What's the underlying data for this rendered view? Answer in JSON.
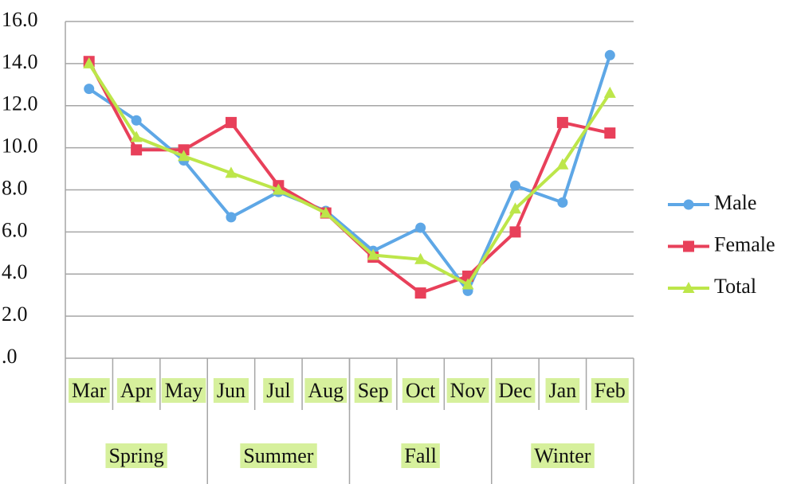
{
  "chart_data": {
    "type": "line",
    "categories": [
      "Mar",
      "Apr",
      "May",
      "Jun",
      "Jul",
      "Aug",
      "Sep",
      "Oct",
      "Nov",
      "Dec",
      "Jan",
      "Feb"
    ],
    "groups": [
      "Spring",
      "Summer",
      "Fall",
      "Winter"
    ],
    "series": [
      {
        "name": "Male",
        "color": "#5ea7e6",
        "marker": "circle",
        "values": [
          12.8,
          11.3,
          9.4,
          6.7,
          7.9,
          7.0,
          5.1,
          6.2,
          3.2,
          8.2,
          7.4,
          14.4
        ]
      },
      {
        "name": "Female",
        "color": "#e8405a",
        "marker": "square",
        "values": [
          14.1,
          9.9,
          9.9,
          11.2,
          8.2,
          6.9,
          4.8,
          3.1,
          3.9,
          6.0,
          11.2,
          10.7
        ]
      },
      {
        "name": "Total",
        "color": "#bde64a",
        "marker": "triangle",
        "values": [
          14.0,
          10.5,
          9.6,
          8.8,
          8.0,
          6.9,
          4.9,
          4.7,
          3.5,
          7.1,
          9.2,
          12.6
        ]
      }
    ],
    "ylim": [
      0,
      16
    ],
    "yticks": [
      {
        "value": 0,
        "label": ".0"
      },
      {
        "value": 2,
        "label": "2.0"
      },
      {
        "value": 4,
        "label": "4.0"
      },
      {
        "value": 6,
        "label": "6.0"
      },
      {
        "value": 8,
        "label": "8.0"
      },
      {
        "value": 10,
        "label": "10.0"
      },
      {
        "value": 12,
        "label": "12.0"
      },
      {
        "value": 14,
        "label": "14.0"
      },
      {
        "value": 16,
        "label": "16.0"
      }
    ],
    "grid": true,
    "legend": "right",
    "label_background": "#d6f09c"
  }
}
